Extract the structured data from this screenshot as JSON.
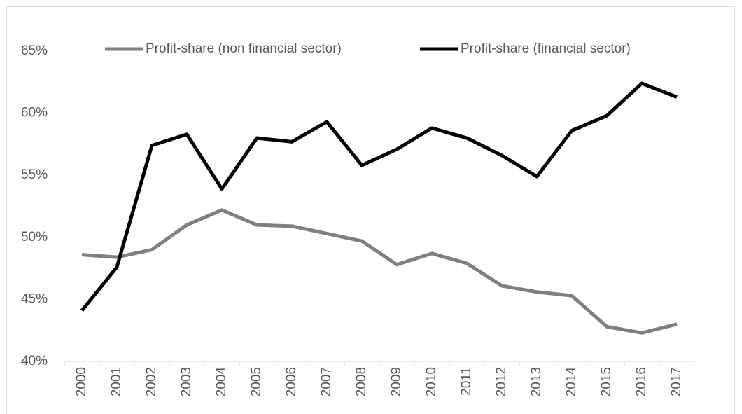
{
  "chart_data": {
    "type": "line",
    "categories": [
      "2000",
      "2001",
      "2002",
      "2003",
      "2004",
      "2005",
      "2006",
      "2007",
      "2008",
      "2009",
      "2010",
      "2011",
      "2012",
      "2013",
      "2014",
      "2015",
      "2016",
      "2017"
    ],
    "series": [
      {
        "name": "Profit-share (non financial sector)",
        "color": "#7f7f7f",
        "values": [
          48.6,
          48.4,
          49.0,
          51.0,
          52.2,
          51.0,
          50.9,
          50.3,
          49.7,
          47.8,
          48.7,
          47.9,
          46.1,
          45.6,
          45.3,
          42.8,
          42.3,
          43.0
        ]
      },
      {
        "name": "Profit-share (financial sector)",
        "color": "#000000",
        "values": [
          44.1,
          47.6,
          57.4,
          58.3,
          53.9,
          58.0,
          57.7,
          59.3,
          55.8,
          57.1,
          58.8,
          58.0,
          56.6,
          54.9,
          58.6,
          59.8,
          62.4,
          61.3
        ]
      }
    ],
    "ylim": [
      40,
      65
    ],
    "yticks": [
      {
        "value": 40,
        "label": "40%"
      },
      {
        "value": 45,
        "label": "45%"
      },
      {
        "value": 50,
        "label": "50%"
      },
      {
        "value": 55,
        "label": "55%"
      },
      {
        "value": 60,
        "label": "60%"
      },
      {
        "value": 65,
        "label": "65%"
      }
    ],
    "legend": "top"
  }
}
